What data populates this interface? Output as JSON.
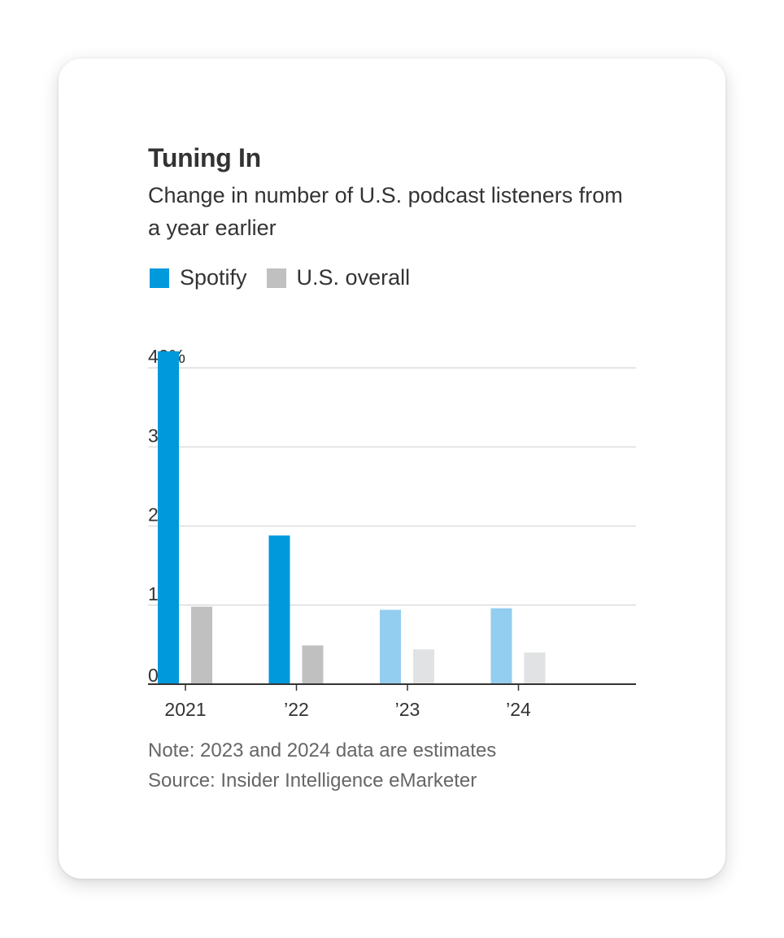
{
  "chart_data": {
    "type": "bar",
    "title": "Tuning In",
    "subtitle": "Change in number of U.S. podcast listeners from a year earlier",
    "categories": [
      "2021",
      "’22",
      "’23",
      "’24"
    ],
    "series": [
      {
        "name": "Spotify",
        "values": [
          42.1,
          18.8,
          9.4,
          9.6
        ],
        "color": "#0099dc",
        "estimate_color": "#93cdef"
      },
      {
        "name": "U.S. overall",
        "values": [
          9.8,
          4.9,
          4.4,
          4.0
        ],
        "color": "#c0c0c0",
        "estimate_color": "#e1e2e3"
      }
    ],
    "estimate_categories": [
      "’23",
      "’24"
    ],
    "ylim": [
      0,
      42
    ],
    "yticks": [
      0,
      10,
      20,
      30,
      40
    ],
    "ytick_labels": [
      "0",
      "10",
      "20",
      "30",
      "40%"
    ],
    "xlabel": "",
    "ylabel": "",
    "grid": true,
    "legend": "top-left"
  },
  "notes": {
    "note": "Note: 2023 and 2024 data are estimates",
    "source": "Source: Insider Intelligence eMarketer"
  }
}
